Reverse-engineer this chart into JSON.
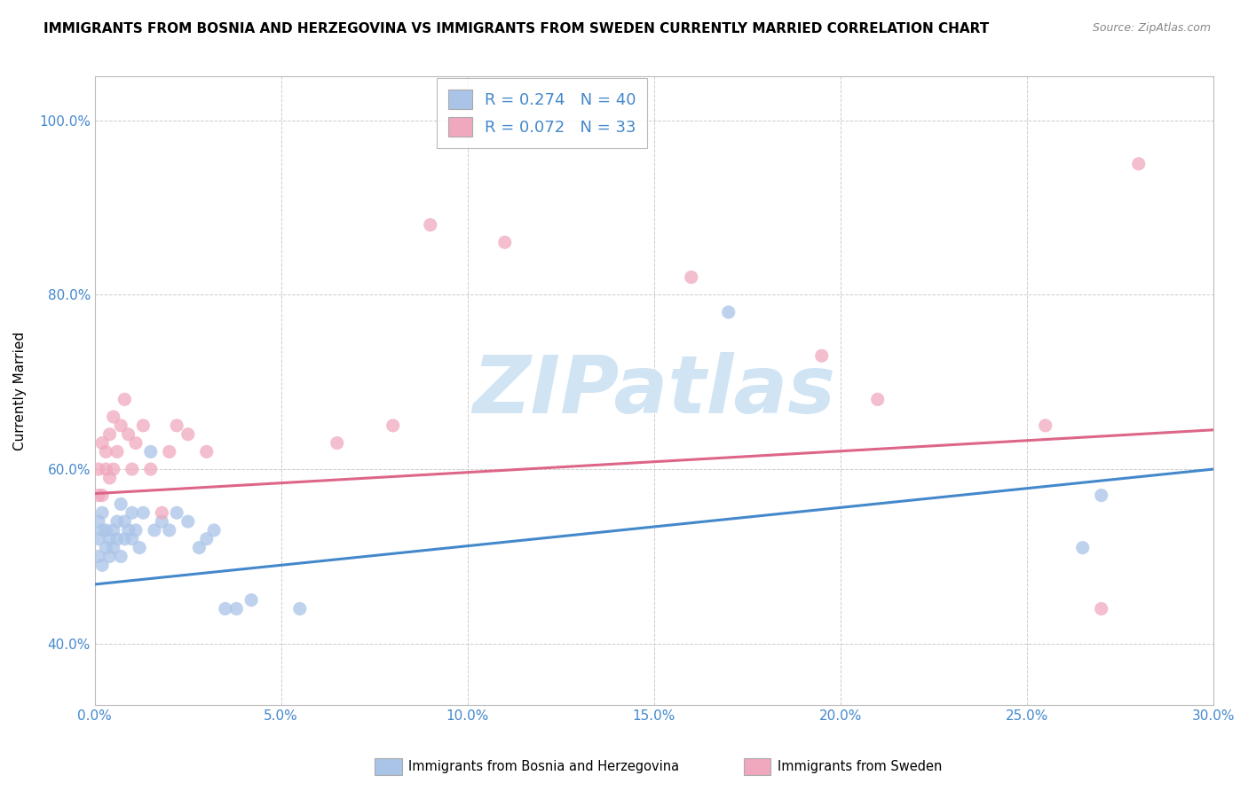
{
  "title": "IMMIGRANTS FROM BOSNIA AND HERZEGOVINA VS IMMIGRANTS FROM SWEDEN CURRENTLY MARRIED CORRELATION CHART",
  "source_text": "Source: ZipAtlas.com",
  "ylabel": "Currently Married",
  "xlim": [
    0.0,
    0.3
  ],
  "ylim": [
    0.33,
    1.05
  ],
  "xticks": [
    0.0,
    0.05,
    0.1,
    0.15,
    0.2,
    0.25,
    0.3
  ],
  "yticks": [
    0.4,
    0.6,
    0.8,
    1.0
  ],
  "xtick_labels": [
    "0.0%",
    "5.0%",
    "10.0%",
    "15.0%",
    "20.0%",
    "25.0%",
    "30.0%"
  ],
  "ytick_labels": [
    "40.0%",
    "60.0%",
    "80.0%",
    "100.0%"
  ],
  "series1_color": "#aac4e8",
  "series2_color": "#f0a8be",
  "series1_label": "Immigrants from Bosnia and Herzegovina",
  "series2_label": "Immigrants from Sweden",
  "series1_R": "0.274",
  "series1_N": "40",
  "series2_R": "0.072",
  "series2_N": "33",
  "line1_color": "#4488cc",
  "line2_color": "#dd6688",
  "watermark": "ZIPatlas",
  "watermark_color": "#d0e4f4",
  "bosnia_x": [
    0.001,
    0.001,
    0.001,
    0.002,
    0.002,
    0.002,
    0.003,
    0.003,
    0.004,
    0.004,
    0.005,
    0.005,
    0.006,
    0.006,
    0.007,
    0.007,
    0.008,
    0.008,
    0.009,
    0.01,
    0.01,
    0.011,
    0.012,
    0.013,
    0.015,
    0.016,
    0.018,
    0.02,
    0.022,
    0.025,
    0.028,
    0.03,
    0.032,
    0.035,
    0.038,
    0.042,
    0.055,
    0.17,
    0.265,
    0.27
  ],
  "bosnia_y": [
    0.5,
    0.52,
    0.54,
    0.49,
    0.53,
    0.55,
    0.51,
    0.53,
    0.5,
    0.52,
    0.51,
    0.53,
    0.52,
    0.54,
    0.5,
    0.56,
    0.52,
    0.54,
    0.53,
    0.52,
    0.55,
    0.53,
    0.51,
    0.55,
    0.62,
    0.53,
    0.54,
    0.53,
    0.55,
    0.54,
    0.51,
    0.52,
    0.53,
    0.44,
    0.44,
    0.45,
    0.44,
    0.78,
    0.51,
    0.57
  ],
  "sweden_x": [
    0.001,
    0.001,
    0.002,
    0.002,
    0.003,
    0.003,
    0.004,
    0.004,
    0.005,
    0.005,
    0.006,
    0.007,
    0.008,
    0.009,
    0.01,
    0.011,
    0.013,
    0.015,
    0.018,
    0.02,
    0.022,
    0.025,
    0.03,
    0.065,
    0.08,
    0.09,
    0.11,
    0.16,
    0.195,
    0.21,
    0.255,
    0.27,
    0.28
  ],
  "sweden_y": [
    0.57,
    0.6,
    0.57,
    0.63,
    0.6,
    0.62,
    0.59,
    0.64,
    0.6,
    0.66,
    0.62,
    0.65,
    0.68,
    0.64,
    0.6,
    0.63,
    0.65,
    0.6,
    0.55,
    0.62,
    0.65,
    0.64,
    0.62,
    0.63,
    0.65,
    0.88,
    0.86,
    0.82,
    0.73,
    0.68,
    0.65,
    0.44,
    0.95
  ],
  "line1_x0": 0.0,
  "line1_x1": 0.3,
  "line1_y0": 0.468,
  "line1_y1": 0.6,
  "line2_x0": 0.0,
  "line2_x1": 0.3,
  "line2_y0": 0.572,
  "line2_y1": 0.645
}
